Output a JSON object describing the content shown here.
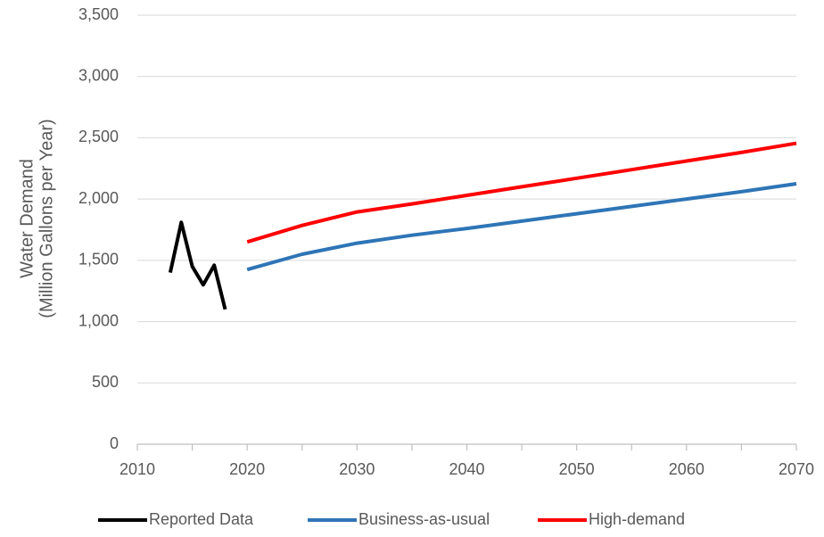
{
  "chart_data": {
    "type": "line",
    "title": "",
    "xlabel": "",
    "ylabel": [
      "Water Demand",
      "(Million Gallons per Year)"
    ],
    "xlim": [
      2010,
      2070
    ],
    "ylim": [
      0,
      3500
    ],
    "x_ticks": [
      2010,
      2020,
      2030,
      2040,
      2050,
      2060,
      2070
    ],
    "x_minor_tick_step": 5,
    "y_ticks": [
      0,
      500,
      1000,
      1500,
      2000,
      2500,
      3000,
      3500
    ],
    "y_tick_labels": [
      "0",
      "500",
      "1,000",
      "1,500",
      "2,000",
      "2,500",
      "3,000",
      "3,500"
    ],
    "grid": "horizontal",
    "legend_position": "bottom",
    "series": [
      {
        "name": "Reported Data",
        "color": "#000000",
        "x": [
          2013,
          2014,
          2015,
          2016,
          2017,
          2018
        ],
        "y": [
          1400,
          1810,
          1450,
          1300,
          1460,
          1100
        ]
      },
      {
        "name": "Business-as-usual",
        "color": "#2E75B6",
        "x": [
          2020,
          2025,
          2030,
          2035,
          2040,
          2045,
          2050,
          2055,
          2060,
          2065,
          2070
        ],
        "y": [
          1425,
          1550,
          1640,
          1705,
          1760,
          1820,
          1880,
          1940,
          2000,
          2060,
          2125
        ]
      },
      {
        "name": "High-demand",
        "color": "#FF0000",
        "x": [
          2020,
          2025,
          2030,
          2035,
          2040,
          2045,
          2050,
          2055,
          2060,
          2065,
          2070
        ],
        "y": [
          1650,
          1785,
          1895,
          1960,
          2030,
          2100,
          2170,
          2240,
          2310,
          2380,
          2455
        ]
      }
    ]
  }
}
